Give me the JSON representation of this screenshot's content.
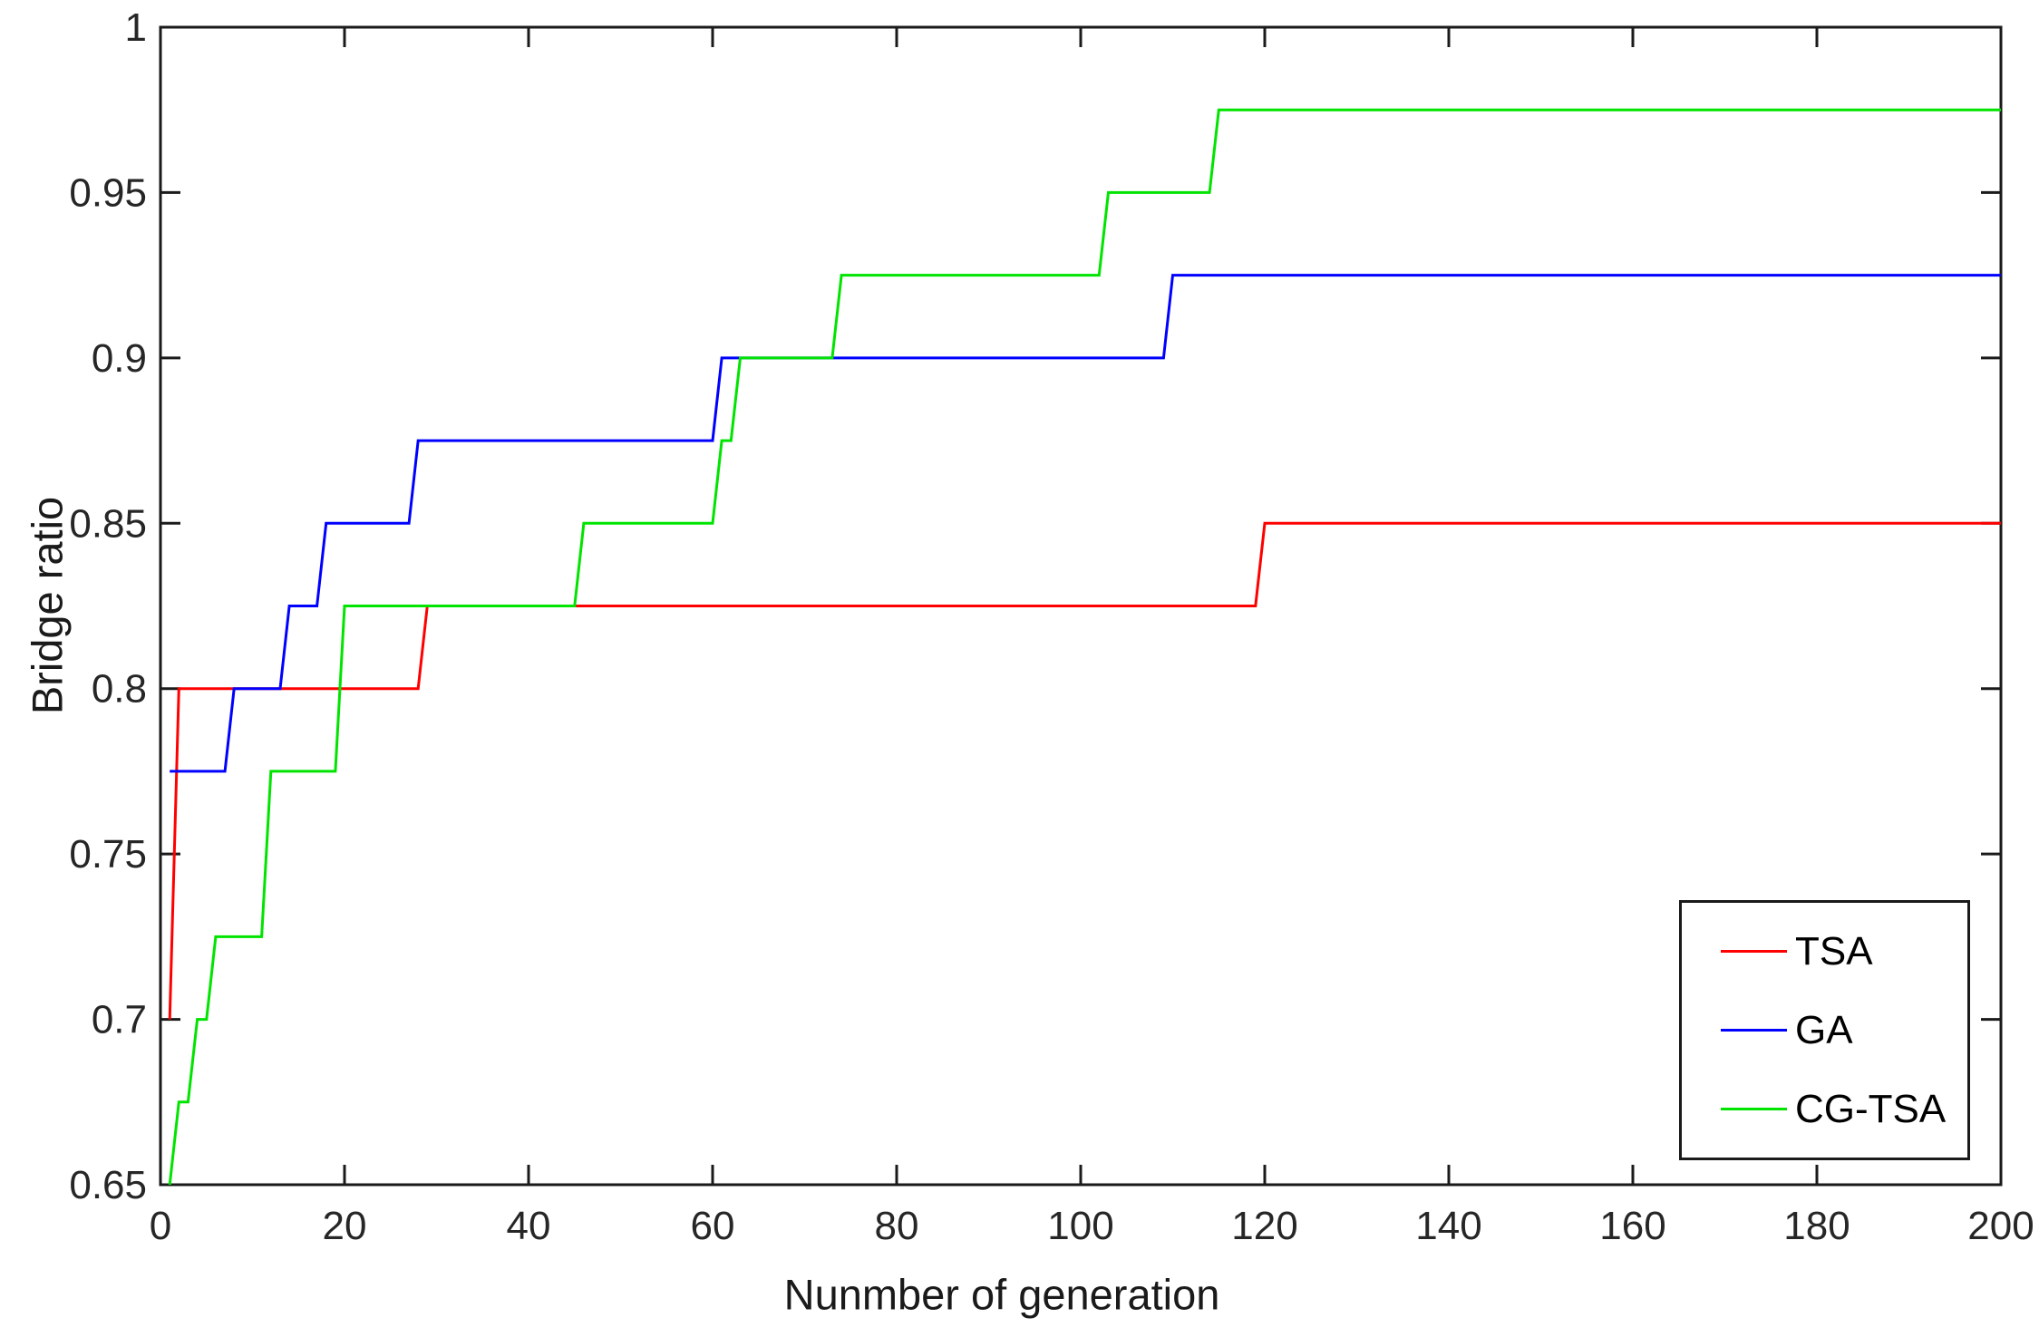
{
  "figure": {
    "background": "#ffffff",
    "axis_color": "#1a1a1a",
    "tick_label_color": "#262626"
  },
  "chart_data": {
    "type": "line",
    "subtype": "stairstep",
    "title": "",
    "xlabel": "Nunmber of generation",
    "ylabel": "Bridge ratio",
    "xlim": [
      0,
      200
    ],
    "ylim": [
      0.65,
      1
    ],
    "x_ticks": [
      0,
      20,
      40,
      60,
      80,
      100,
      120,
      140,
      160,
      180,
      200
    ],
    "x_tick_labels": [
      "0",
      "20",
      "40",
      "60",
      "80",
      "100",
      "120",
      "140",
      "160",
      "180",
      "200"
    ],
    "y_ticks": [
      0.65,
      0.7,
      0.75,
      0.8,
      0.85,
      0.9,
      0.95,
      1
    ],
    "y_tick_labels": [
      "0.65",
      "0.7",
      "0.75",
      "0.8",
      "0.85",
      "0.9",
      "0.95",
      "1"
    ],
    "grid": false,
    "box": true,
    "legend": {
      "position": "lower-right",
      "entries": [
        "TSA",
        "GA",
        "CG-TSA"
      ]
    },
    "series": [
      {
        "name": "TSA",
        "color": "#ff0000",
        "points": [
          [
            1,
            0.7
          ],
          [
            2,
            0.8
          ],
          [
            28,
            0.8
          ],
          [
            29,
            0.825
          ],
          [
            119,
            0.825
          ],
          [
            120,
            0.85
          ],
          [
            200,
            0.85
          ]
        ]
      },
      {
        "name": "GA",
        "color": "#0000ff",
        "points": [
          [
            1,
            0.775
          ],
          [
            7,
            0.775
          ],
          [
            8,
            0.8
          ],
          [
            13,
            0.8
          ],
          [
            14,
            0.825
          ],
          [
            17,
            0.825
          ],
          [
            18,
            0.85
          ],
          [
            27,
            0.85
          ],
          [
            28,
            0.875
          ],
          [
            60,
            0.875
          ],
          [
            61,
            0.9
          ],
          [
            109,
            0.9
          ],
          [
            110,
            0.925
          ],
          [
            200,
            0.925
          ]
        ]
      },
      {
        "name": "CG-TSA",
        "color": "#00e400",
        "points": [
          [
            1,
            0.65
          ],
          [
            2,
            0.675
          ],
          [
            3,
            0.675
          ],
          [
            4,
            0.7
          ],
          [
            5,
            0.7
          ],
          [
            6,
            0.725
          ],
          [
            11,
            0.725
          ],
          [
            12,
            0.775
          ],
          [
            19,
            0.775
          ],
          [
            20,
            0.825
          ],
          [
            45,
            0.825
          ],
          [
            46,
            0.85
          ],
          [
            60,
            0.85
          ],
          [
            61,
            0.875
          ],
          [
            62,
            0.875
          ],
          [
            63,
            0.9
          ],
          [
            73,
            0.9
          ],
          [
            74,
            0.925
          ],
          [
            102,
            0.925
          ],
          [
            103,
            0.95
          ],
          [
            114,
            0.95
          ],
          [
            115,
            0.975
          ],
          [
            200,
            0.975
          ]
        ]
      }
    ]
  }
}
